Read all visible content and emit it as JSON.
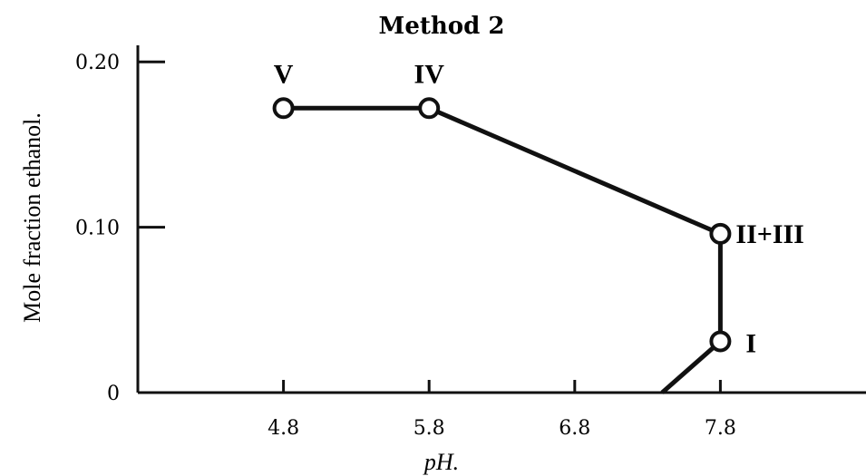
{
  "chart_data": {
    "type": "line",
    "title": "Method 2",
    "xlabel": "pH.",
    "ylabel": "Mole fraction ethanol.",
    "xlim": [
      3.8,
      8.8
    ],
    "ylim": [
      0,
      0.21
    ],
    "x_ticks": [
      4.8,
      5.8,
      6.8,
      7.8
    ],
    "x_tick_labels": [
      "4.8",
      "5.8",
      "6.8",
      "7.8"
    ],
    "y_ticks": [
      0,
      0.1,
      0.2
    ],
    "y_tick_labels": [
      "0",
      "0.10",
      "0.20"
    ],
    "grid": false,
    "series": [
      {
        "points": [
          {
            "x": 4.8,
            "y": 0.172,
            "label": "V"
          },
          {
            "x": 5.8,
            "y": 0.172,
            "label": "IV"
          },
          {
            "x": 7.8,
            "y": 0.096,
            "label": "II+III"
          },
          {
            "x": 7.8,
            "y": 0.031,
            "label": "I"
          }
        ],
        "tail_end": {
          "x": 7.4,
          "y": 0
        }
      }
    ]
  }
}
